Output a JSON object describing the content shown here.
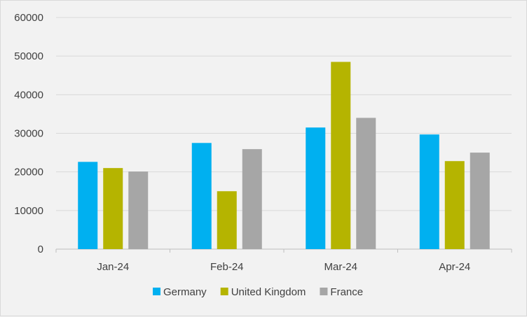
{
  "chart_data": {
    "type": "bar",
    "title": "",
    "xlabel": "",
    "ylabel": "",
    "categories": [
      "Jan-24",
      "Feb-24",
      "Mar-24",
      "Apr-24"
    ],
    "series": [
      {
        "name": "Germany",
        "color": "#00b0f0",
        "values": [
          22600,
          27500,
          31500,
          29700
        ]
      },
      {
        "name": "United Kingdom",
        "color": "#b5b400",
        "values": [
          21000,
          15000,
          48500,
          22800
        ]
      },
      {
        "name": "France",
        "color": "#a6a6a6",
        "values": [
          20100,
          25900,
          34000,
          25000
        ]
      }
    ],
    "ylim": [
      0,
      60000
    ],
    "yticks": [
      0,
      10000,
      20000,
      30000,
      40000,
      50000,
      60000
    ],
    "grid": true,
    "legend_position": "bottom"
  }
}
